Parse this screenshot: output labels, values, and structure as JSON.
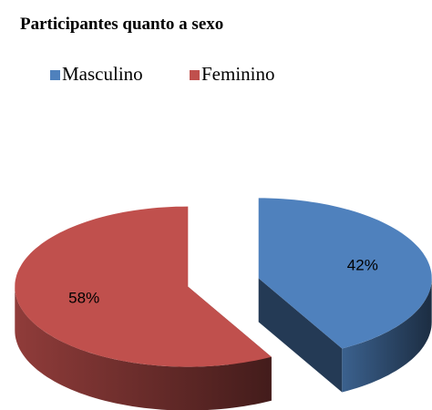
{
  "chart_data": {
    "type": "pie",
    "title": "Participantes quanto a sexo",
    "categories": [
      "Masculino",
      "Feminino"
    ],
    "values": [
      42,
      58
    ],
    "value_labels": [
      "42%",
      "58%"
    ],
    "colors": [
      "#4f81bd",
      "#c0504d"
    ],
    "legend": "top"
  }
}
